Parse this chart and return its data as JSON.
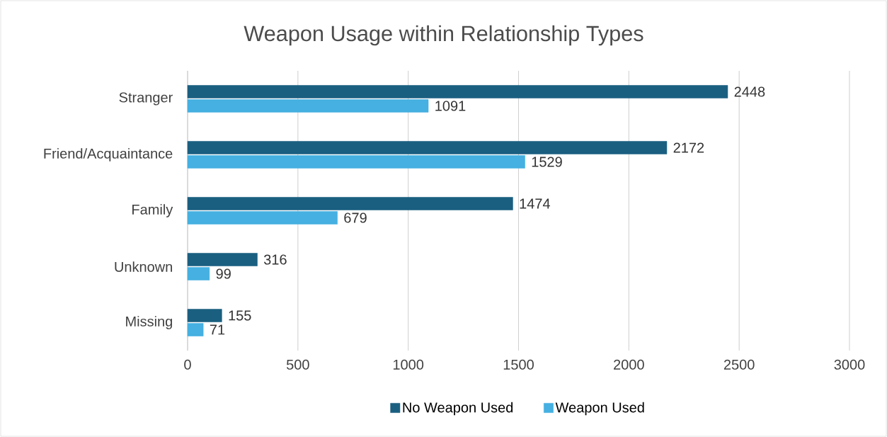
{
  "chart_data": {
    "type": "bar",
    "orientation": "horizontal",
    "title": "Weapon Usage within Relationship Types",
    "categories": [
      "Stranger",
      "Friend/Acquaintance",
      "Family",
      "Unknown",
      "Missing"
    ],
    "series": [
      {
        "name": "No Weapon Used",
        "color": "#1a5f80",
        "values": [
          2448,
          2172,
          1474,
          316,
          155
        ]
      },
      {
        "name": "Weapon Used",
        "color": "#45b0e1",
        "values": [
          1091,
          1529,
          679,
          99,
          71
        ]
      }
    ],
    "xlim": [
      0,
      3000
    ],
    "xticks": [
      0,
      500,
      1000,
      1500,
      2000,
      2500,
      3000
    ],
    "grid": "x",
    "legend": "bottom",
    "data_labels": true
  }
}
